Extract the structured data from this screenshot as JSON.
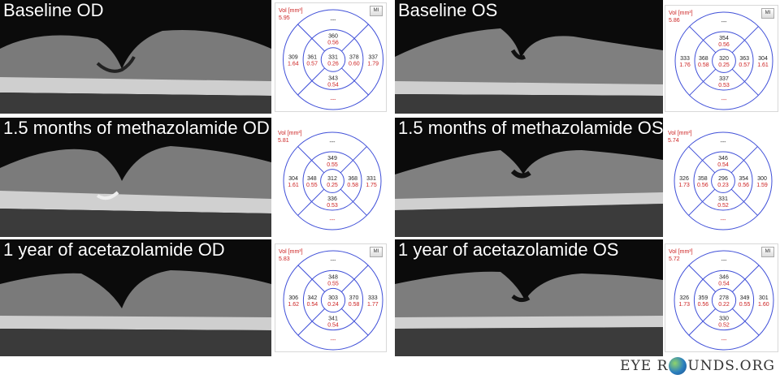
{
  "panels": [
    {
      "id": "baseline-od",
      "title": "Baseline OD",
      "vol_label": "Vol [mm³]",
      "vol_value": "5.95",
      "show_mi": true,
      "mi_label": "MI",
      "thickness": {
        "top_outer": "---",
        "top_inner": [
          "360",
          "0.56"
        ],
        "left_outer": [
          "309",
          "1.64"
        ],
        "left_inner": [
          "361",
          "0.57"
        ],
        "center": [
          "331",
          "0.26"
        ],
        "right_inner": [
          "378",
          "0.60"
        ],
        "right_outer": [
          "337",
          "1.79"
        ],
        "bottom_inner": [
          "343",
          "0.54"
        ],
        "bottom_outer": "---"
      }
    },
    {
      "id": "baseline-os",
      "title": "Baseline OS",
      "vol_label": "Vol [mm³]",
      "vol_value": "5.86",
      "show_mi": true,
      "mi_label": "MI",
      "thickness": {
        "top_outer": "---",
        "top_inner": [
          "354",
          "0.56"
        ],
        "left_outer": [
          "333",
          "1.76"
        ],
        "left_inner": [
          "368",
          "0.58"
        ],
        "center": [
          "320",
          "0.25"
        ],
        "right_inner": [
          "363",
          "0.57"
        ],
        "right_outer": [
          "304",
          "1.61"
        ],
        "bottom_inner": [
          "337",
          "0.53"
        ],
        "bottom_outer": "---"
      }
    },
    {
      "id": "meth-od",
      "title": "1.5 months of methazolamide OD",
      "vol_label": "Vol [mm³]",
      "vol_value": "5.81",
      "show_mi": false,
      "mi_label": "",
      "thickness": {
        "top_outer": "---",
        "top_inner": [
          "349",
          "0.55"
        ],
        "left_outer": [
          "304",
          "1.61"
        ],
        "left_inner": [
          "348",
          "0.55"
        ],
        "center": [
          "312",
          "0.25"
        ],
        "right_inner": [
          "368",
          "0.58"
        ],
        "right_outer": [
          "331",
          "1.75"
        ],
        "bottom_inner": [
          "336",
          "0.53"
        ],
        "bottom_outer": "---"
      }
    },
    {
      "id": "meth-os",
      "title": "1.5 months of methazolamide OS",
      "vol_label": "Vol [mm³]",
      "vol_value": "5.74",
      "show_mi": false,
      "mi_label": "",
      "thickness": {
        "top_outer": "---",
        "top_inner": [
          "346",
          "0.54"
        ],
        "left_outer": [
          "326",
          "1.73"
        ],
        "left_inner": [
          "358",
          "0.56"
        ],
        "center": [
          "296",
          "0.23"
        ],
        "right_inner": [
          "354",
          "0.56"
        ],
        "right_outer": [
          "300",
          "1.59"
        ],
        "bottom_inner": [
          "331",
          "0.52"
        ],
        "bottom_outer": "---"
      }
    },
    {
      "id": "acet-od",
      "title": "1 year of acetazolamide OD",
      "vol_label": "Vol [mm³]",
      "vol_value": "5.83",
      "show_mi": true,
      "mi_label": "MI",
      "thickness": {
        "top_outer": "---",
        "top_inner": [
          "348",
          "0.55"
        ],
        "left_outer": [
          "306",
          "1.62"
        ],
        "left_inner": [
          "342",
          "0.54"
        ],
        "center": [
          "303",
          "0.24"
        ],
        "right_inner": [
          "370",
          "0.58"
        ],
        "right_outer": [
          "333",
          "1.77"
        ],
        "bottom_inner": [
          "341",
          "0.54"
        ],
        "bottom_outer": "---"
      }
    },
    {
      "id": "acet-os",
      "title": "1 year of acetazolamide OS",
      "vol_label": "Vol [mm³]",
      "vol_value": "5.72",
      "show_mi": true,
      "mi_label": "MI",
      "thickness": {
        "top_outer": "---",
        "top_inner": [
          "346",
          "0.54"
        ],
        "left_outer": [
          "326",
          "1.73"
        ],
        "left_inner": [
          "359",
          "0.56"
        ],
        "center": [
          "278",
          "0.22"
        ],
        "right_inner": [
          "349",
          "0.55"
        ],
        "right_outer": [
          "301",
          "1.60"
        ],
        "bottom_inner": [
          "330",
          "0.52"
        ],
        "bottom_outer": "---"
      }
    }
  ],
  "brand": {
    "text_left": "EYE R",
    "text_right": "UNDS.ORG"
  },
  "colors": {
    "ring": "#3f4fd8",
    "value_black": "#222222",
    "value_red": "#cc2222"
  }
}
